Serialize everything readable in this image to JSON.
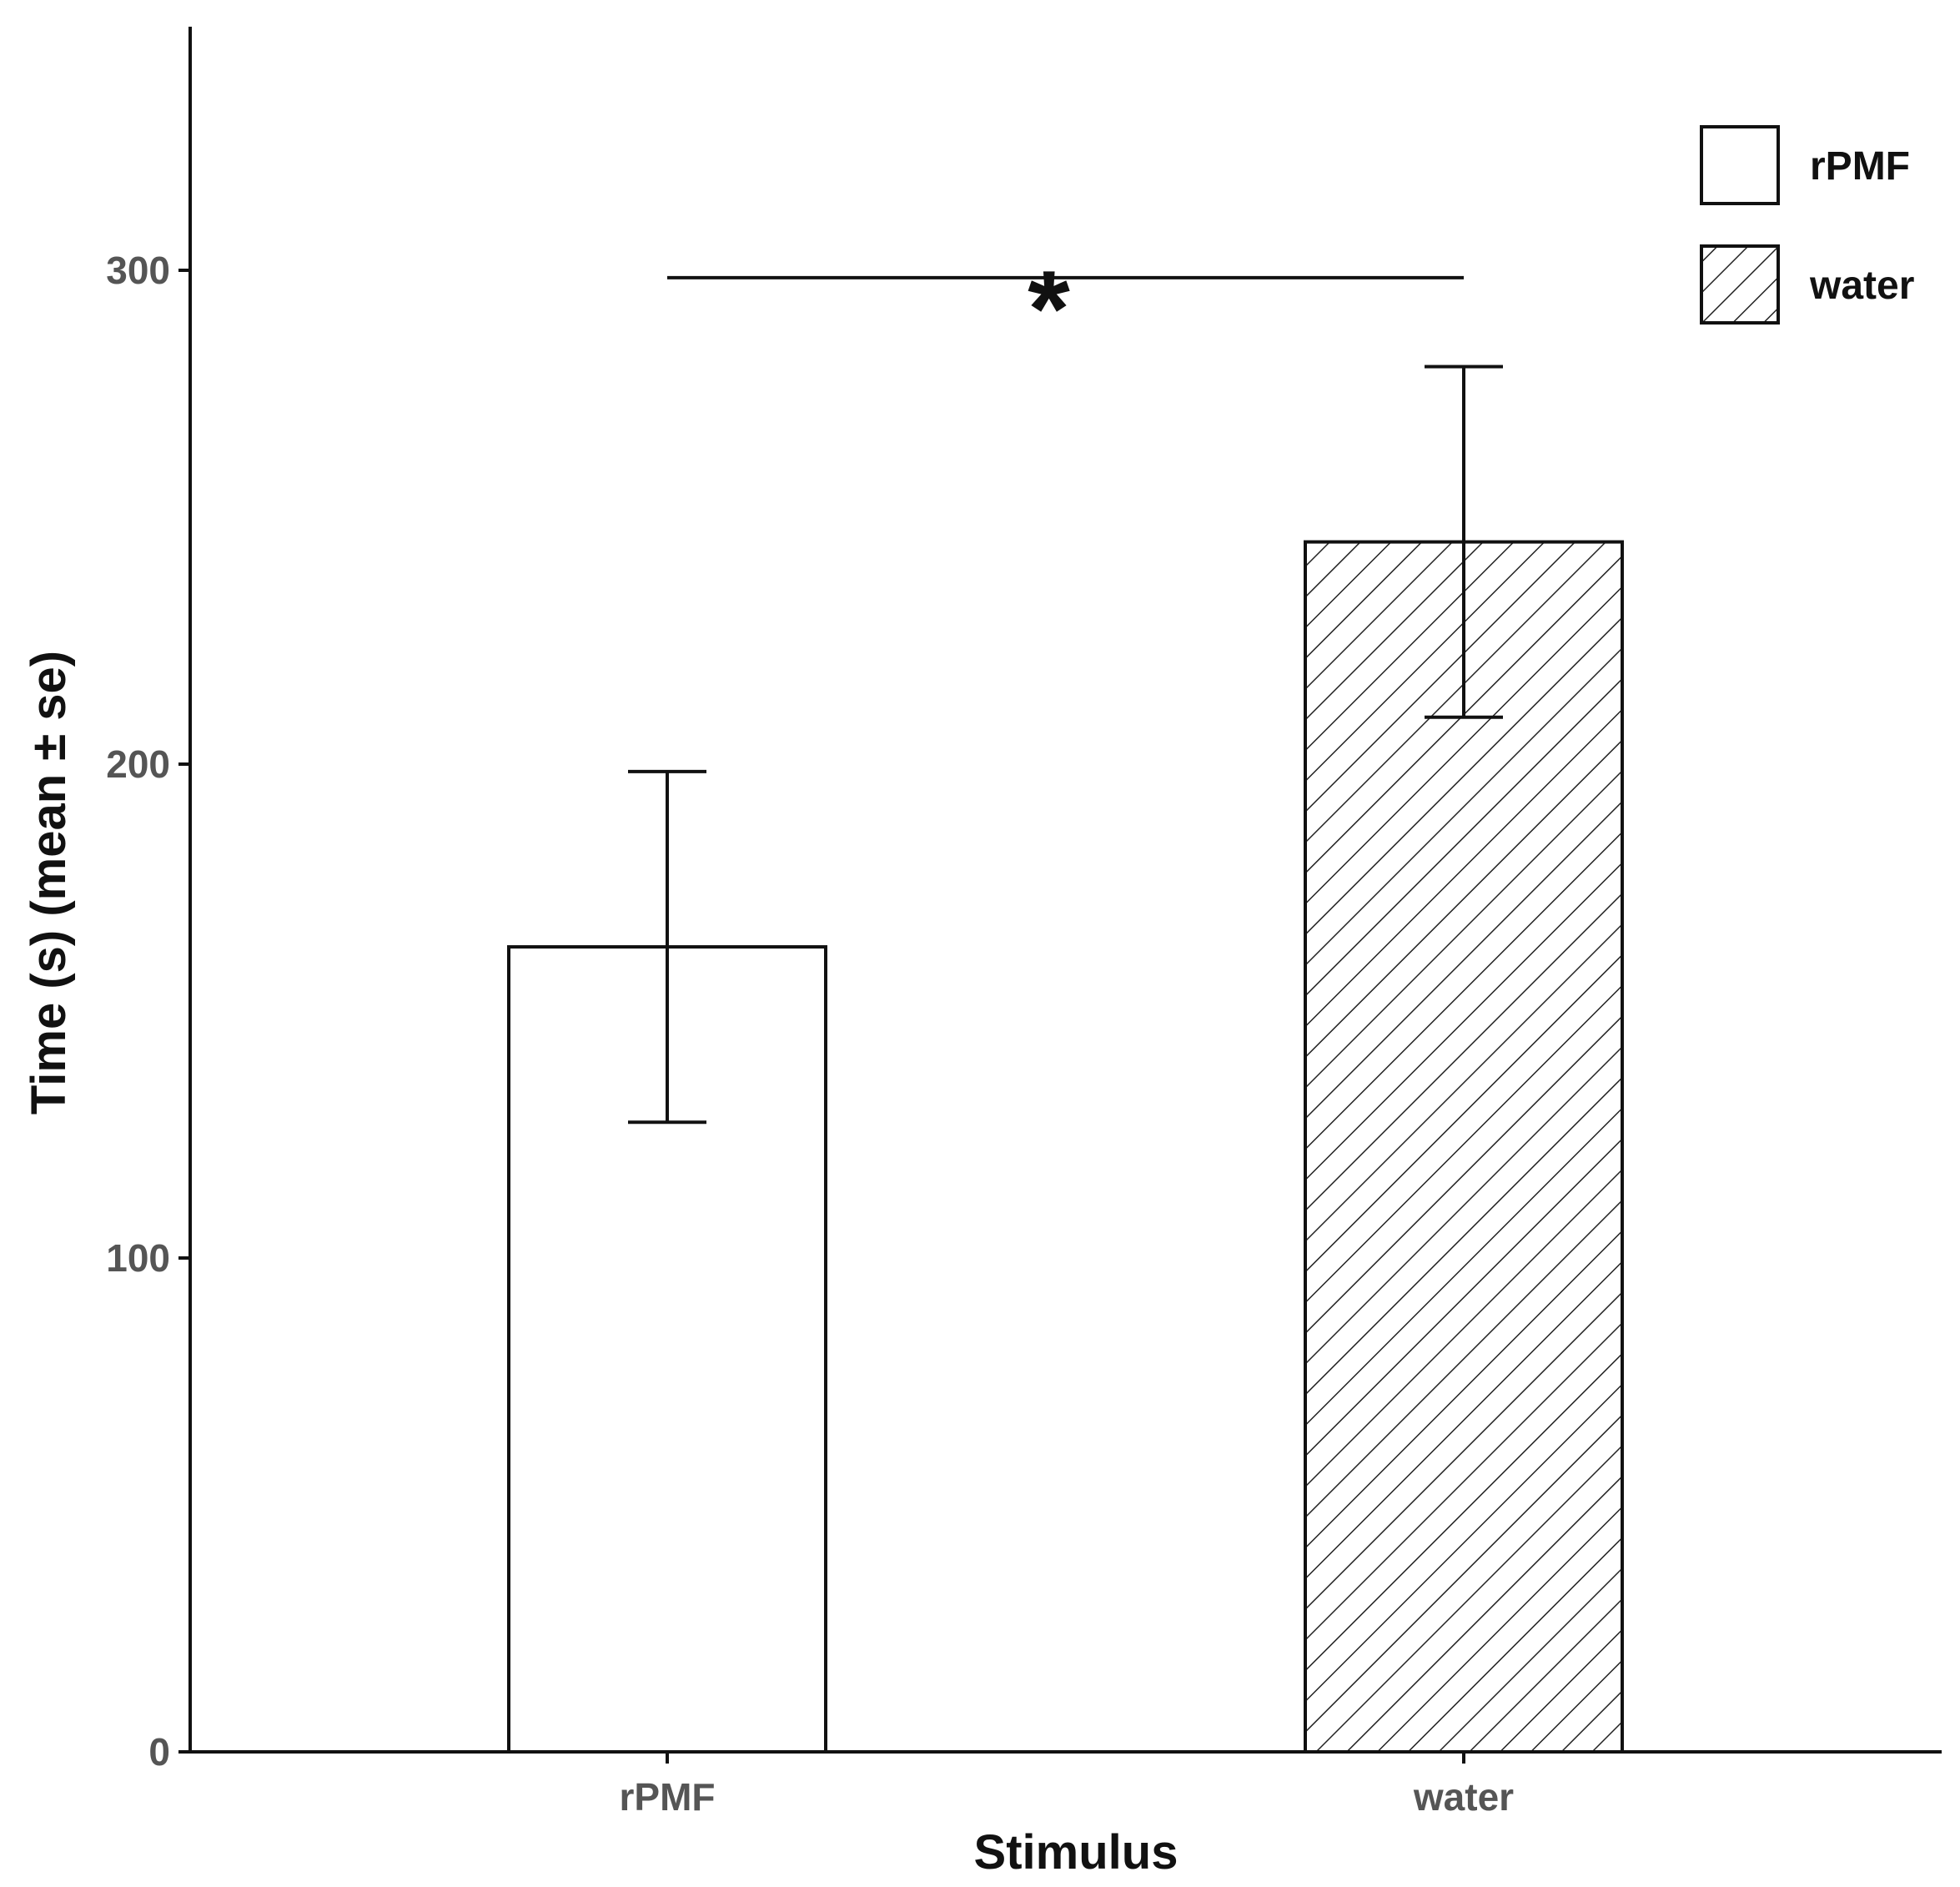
{
  "chart_data": {
    "type": "bar",
    "title": "",
    "xlabel": "Stimulus",
    "ylabel": "Time (s) (mean ± se)",
    "categories": [
      "rPMF",
      "water"
    ],
    "values": [
      163,
      245
    ],
    "errors": [
      35.5,
      35.5
    ],
    "ylim": [
      0,
      350
    ],
    "yticks": [
      0,
      100,
      200,
      300
    ],
    "ytick_labels": [
      "0",
      "100",
      "200",
      "300"
    ],
    "grid": false,
    "colors": {
      "axis": "#111111",
      "tick_text": "#555555",
      "bar_fill": "#ffffff",
      "bar_stroke": "#111111",
      "hatch": "#222222"
    },
    "fills": [
      "solid",
      "hatched"
    ],
    "legend": {
      "placement": "top-right",
      "entries": [
        {
          "label": "rPMF",
          "fill": "solid"
        },
        {
          "label": "water",
          "fill": "hatched"
        }
      ]
    },
    "significance": {
      "symbol": "*",
      "between": [
        "rPMF",
        "water"
      ],
      "y": 298.5
    }
  }
}
